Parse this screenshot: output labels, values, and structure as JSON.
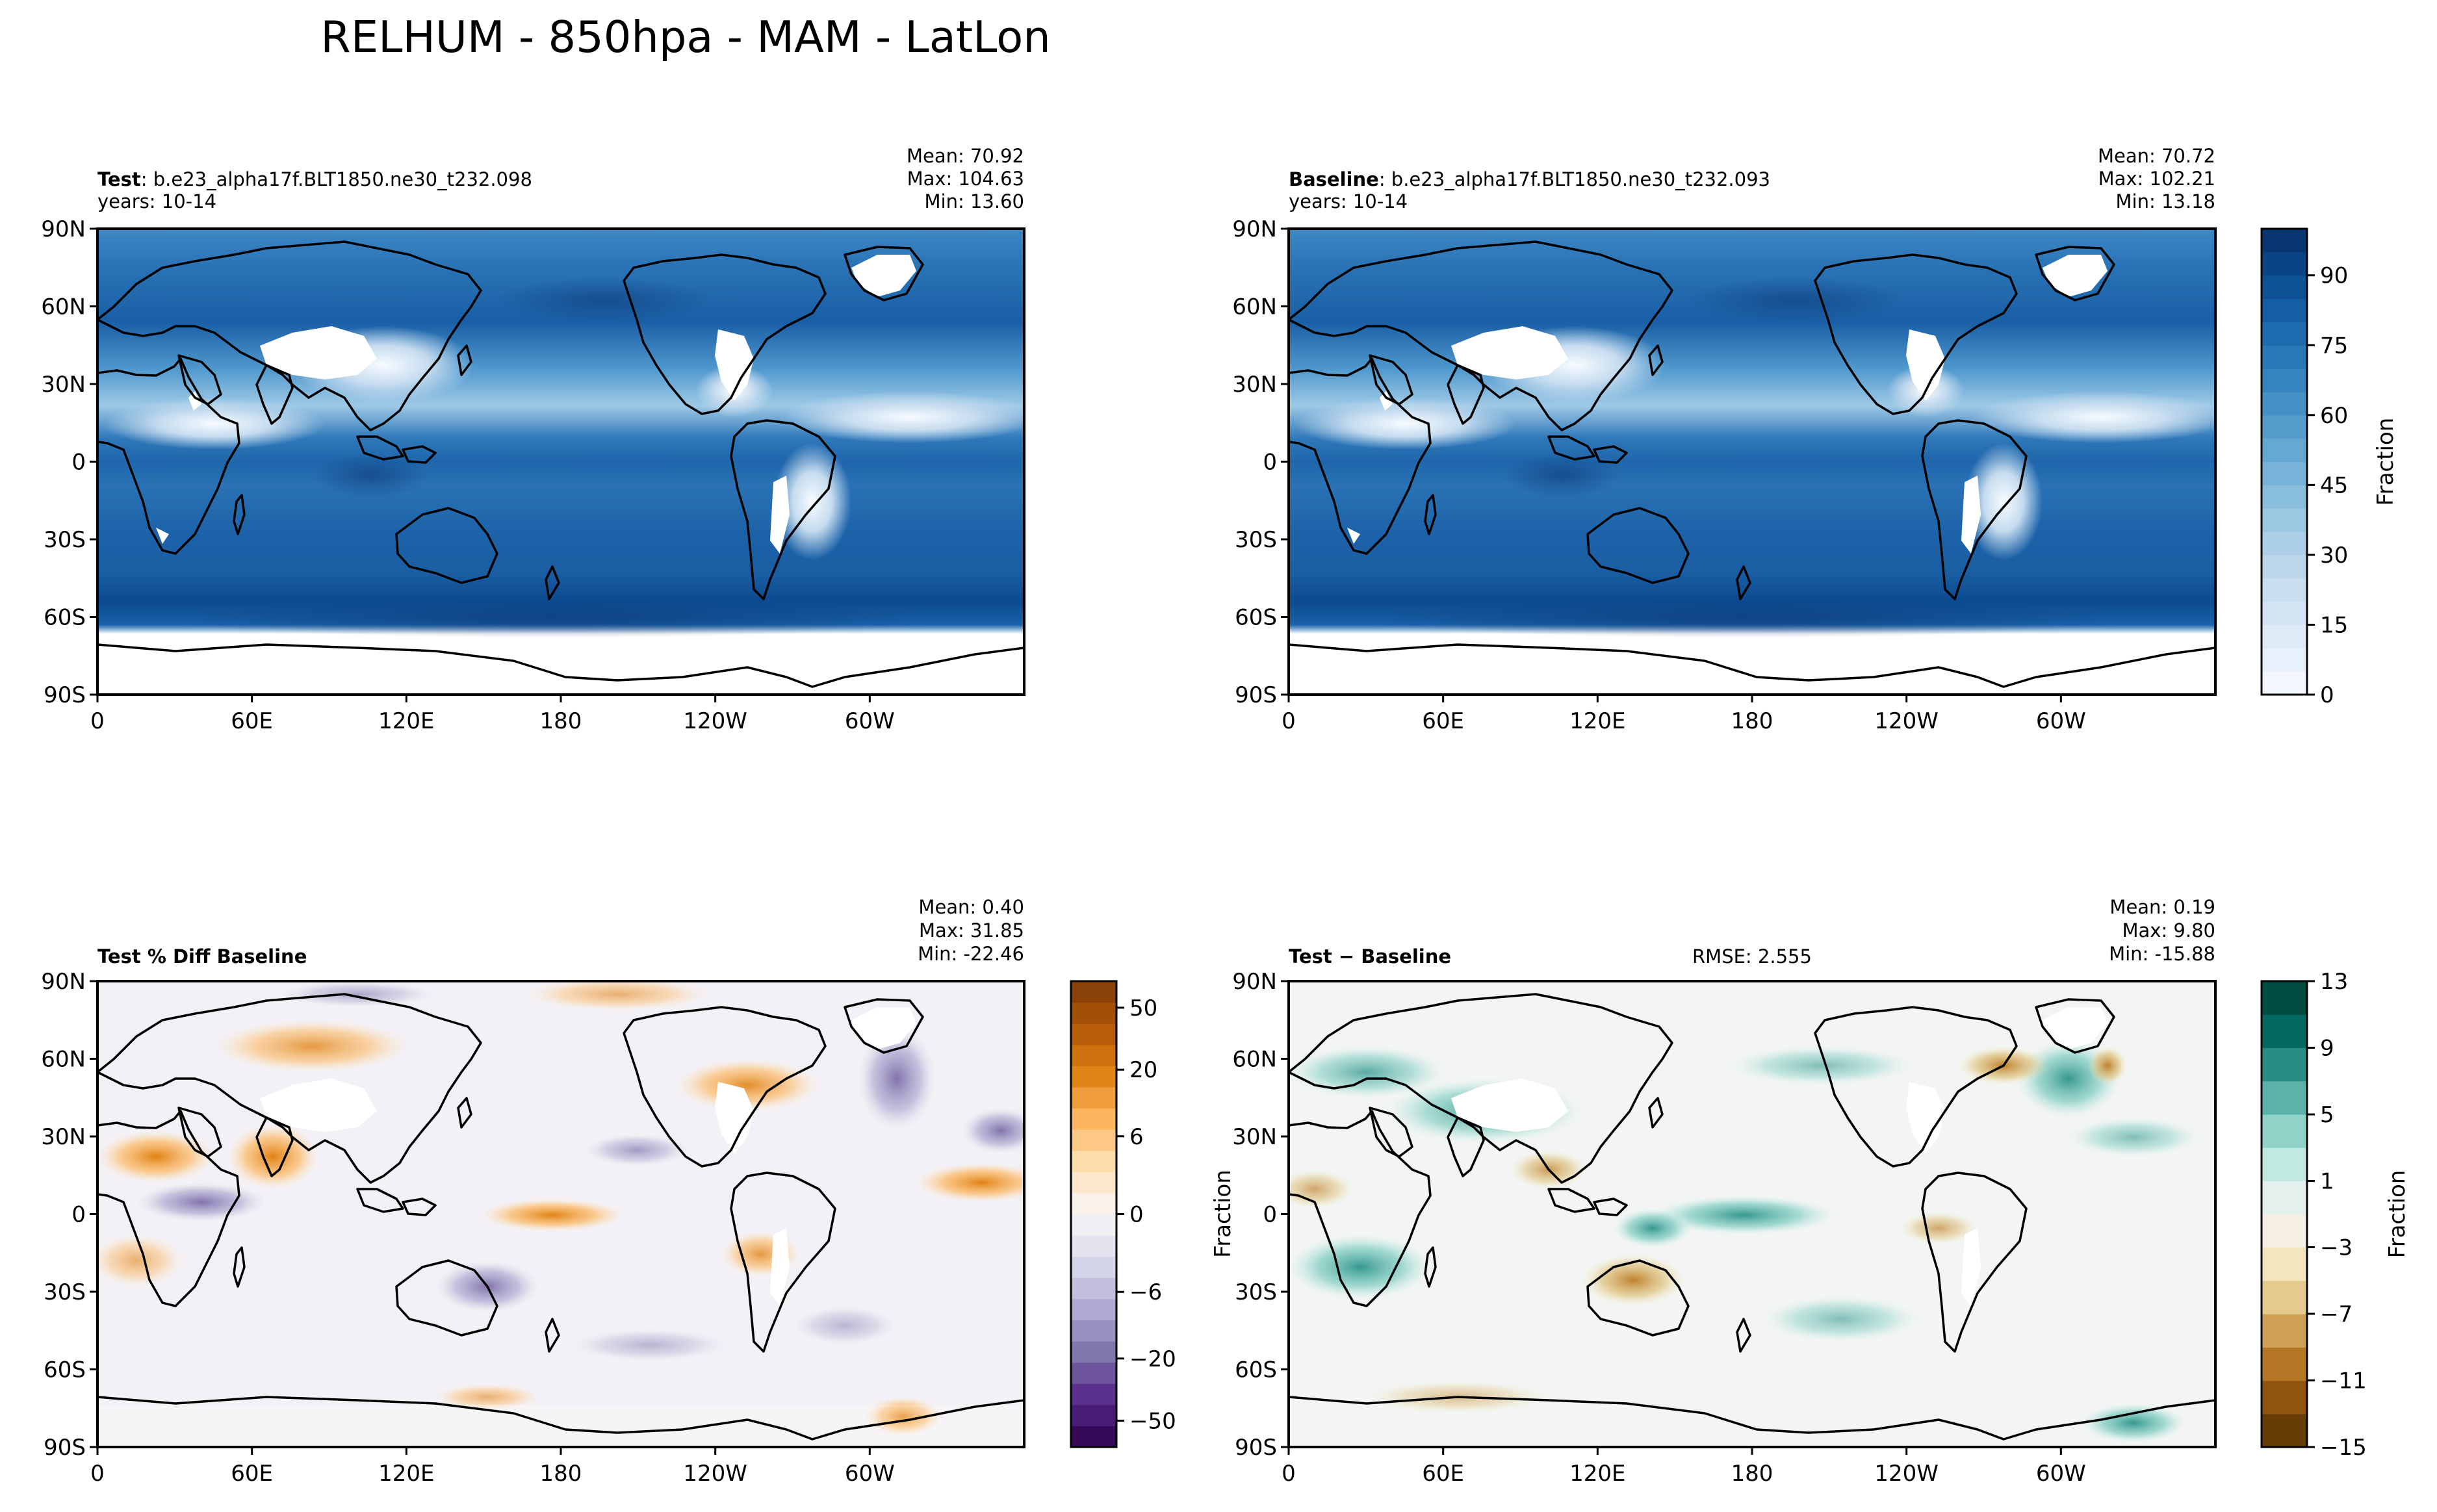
{
  "suptitle": "RELHUM - 850hpa - MAM - LatLon",
  "x_tick_labels": [
    "0",
    "60E",
    "120E",
    "180",
    "120W",
    "60W"
  ],
  "y_tick_labels": [
    "90N",
    "60N",
    "30N",
    "0",
    "30S",
    "60S",
    "90S"
  ],
  "panels": {
    "test": {
      "title_bold": "Test",
      "title_rest": ": b.e23_alpha17f.BLT1850.ne30_t232.098",
      "years": "years: 10-14",
      "mean": "Mean: 70.92",
      "max": "Max: 104.63",
      "min": "Min: 13.60"
    },
    "baseline": {
      "title_bold": "Baseline",
      "title_rest": ": b.e23_alpha17f.BLT1850.ne30_t232.093",
      "years": "years: 10-14",
      "mean": "Mean: 70.72",
      "max": "Max: 102.21",
      "min": "Min: 13.18"
    },
    "pctdiff": {
      "title_bold": "Test % Diff Baseline",
      "mean": "Mean:  0.40",
      "max": "Max: 31.85",
      "min": "Min: -22.46"
    },
    "diff": {
      "title_bold": "Test − Baseline",
      "rmse": "RMSE: 2.555",
      "mean": "Mean:  0.19",
      "max": "Max:  9.80",
      "min": "Min: -15.88",
      "left_ylabel": "Fraction"
    }
  },
  "colorbars": {
    "main": {
      "label": "Fraction",
      "ticks": [
        "0",
        "15",
        "30",
        "45",
        "60",
        "75",
        "90"
      ],
      "colormap": "Blues"
    },
    "pctdiff": {
      "label": "",
      "ticks": [
        "−50",
        "−20",
        "−6",
        "0",
        "6",
        "20",
        "50"
      ],
      "colormap": "PuOr"
    },
    "diff": {
      "label": "Fraction",
      "ticks": [
        "−15",
        "−11",
        "−7",
        "−3",
        "1",
        "5",
        "9",
        "13"
      ],
      "colormap": "BrBG"
    }
  },
  "colors": {
    "main": [
      "#f7fbff",
      "#e3eef9",
      "#cfe1f2",
      "#b5d4e9",
      "#93c3df",
      "#6daed5",
      "#4b97c9",
      "#2f7ebc",
      "#1864aa",
      "#0a4a90",
      "#08306b"
    ],
    "pctdiff": [
      "#2d004b",
      "#542788",
      "#8073ac",
      "#b2abd2",
      "#d8daeb",
      "#f7f7f7",
      "#fee0b6",
      "#fdb863",
      "#e08214",
      "#b35806",
      "#7f3b08"
    ],
    "diff": [
      "#543005",
      "#8c510a",
      "#bf812d",
      "#dfc27d",
      "#f6e8c3",
      "#f5f5f5",
      "#c7eae5",
      "#80cdc1",
      "#35978f",
      "#01665e",
      "#003c30"
    ],
    "ocean_main": "#2d6fb3",
    "dry_main": "#e8f1fa",
    "land_gap": "#ffffff"
  },
  "chart_data": [
    {
      "type": "heatmap",
      "name": "Test RELHUM 850hPa MAM",
      "x_ticks": [
        "0",
        "60E",
        "120E",
        "180",
        "120W",
        "60W"
      ],
      "y_ticks": [
        "90N",
        "60N",
        "30N",
        "0",
        "30S",
        "60S",
        "90S"
      ],
      "xlim": [
        0,
        360
      ],
      "ylim": [
        -90,
        90
      ],
      "colorbar_range": [
        0,
        100
      ],
      "stats": {
        "mean": 70.92,
        "max": 104.63,
        "min": 13.6
      }
    },
    {
      "type": "heatmap",
      "name": "Baseline RELHUM 850hPa MAM",
      "xlim": [
        0,
        360
      ],
      "ylim": [
        -90,
        90
      ],
      "colorbar_range": [
        0,
        100
      ],
      "stats": {
        "mean": 70.72,
        "max": 102.21,
        "min": 13.18
      }
    },
    {
      "type": "heatmap",
      "name": "Test % Diff Baseline",
      "xlim": [
        0,
        360
      ],
      "ylim": [
        -90,
        90
      ],
      "colorbar_range": [
        -60,
        60
      ],
      "stats": {
        "mean": 0.4,
        "max": 31.85,
        "min": -22.46
      }
    },
    {
      "type": "heatmap",
      "name": "Test - Baseline",
      "xlim": [
        0,
        360
      ],
      "ylim": [
        -90,
        90
      ],
      "colorbar_range": [
        -15,
        13
      ],
      "stats": {
        "mean": 0.19,
        "max": 9.8,
        "min": -15.88,
        "rmse": 2.555
      }
    }
  ]
}
